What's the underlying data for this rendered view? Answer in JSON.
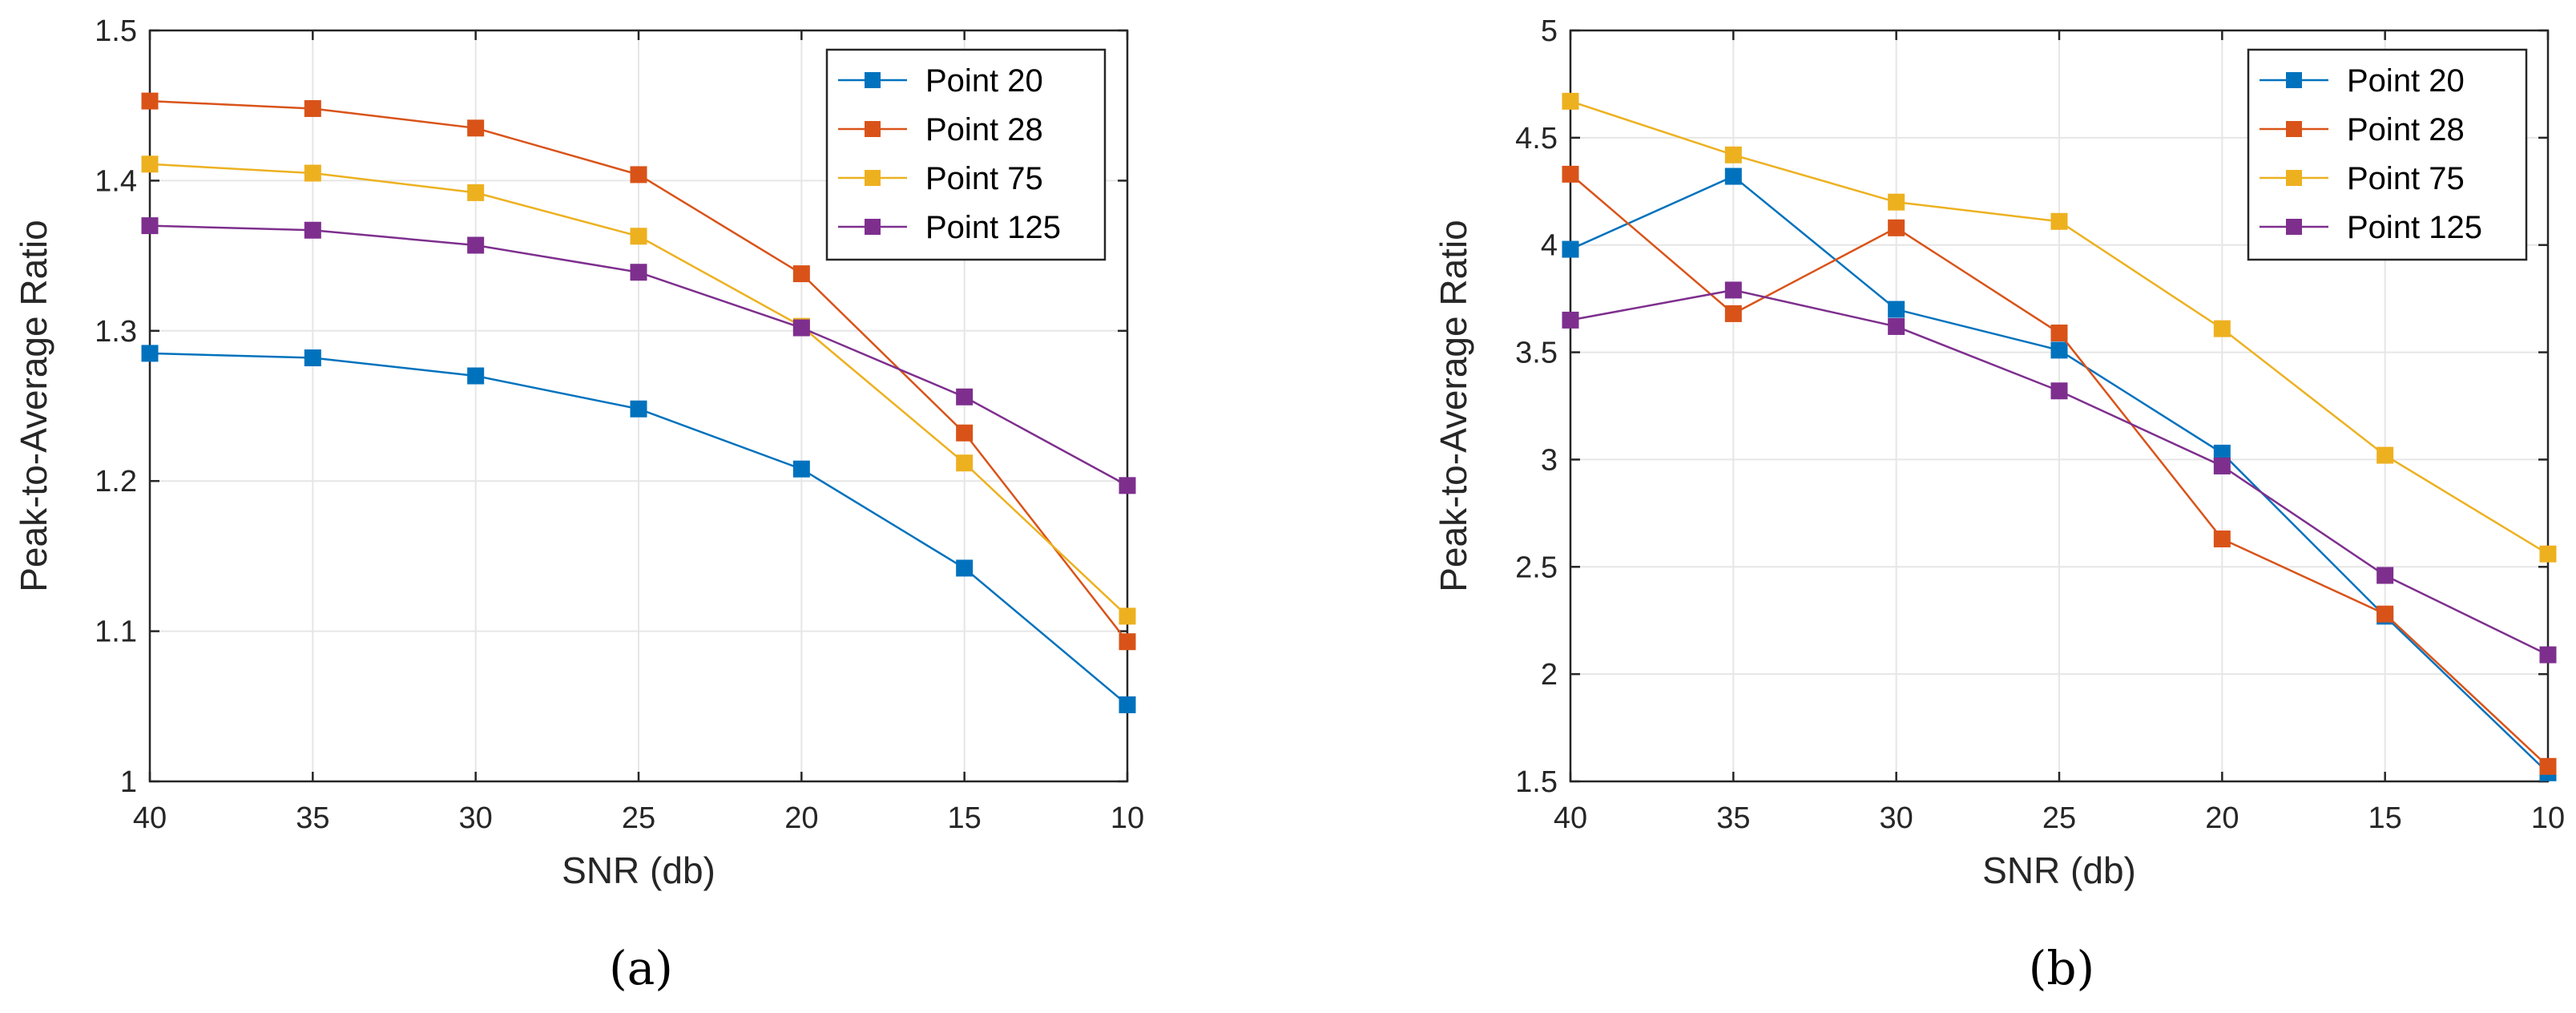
{
  "chart_data": [
    {
      "type": "line",
      "caption": "(a)",
      "xlabel": "SNR (db)",
      "ylabel": "Peak-to-Average Ratio",
      "x": [
        40,
        35,
        30,
        25,
        20,
        15,
        10
      ],
      "xlim": [
        40,
        10
      ],
      "xticks": [
        40,
        35,
        30,
        25,
        20,
        15,
        10
      ],
      "xtick_labels": [
        "40",
        "35",
        "30",
        "25",
        "20",
        "15",
        "10"
      ],
      "ylim": [
        1,
        1.5
      ],
      "yticks": [
        1,
        1.1,
        1.2,
        1.3,
        1.4,
        1.5
      ],
      "ytick_labels": [
        "1",
        "1.1",
        "1.2",
        "1.3",
        "1.4",
        "1.5"
      ],
      "grid": true,
      "legend": "top-right",
      "series": [
        {
          "name": "Point 20",
          "color": "#0072BD",
          "values": [
            1.285,
            1.282,
            1.27,
            1.248,
            1.208,
            1.142,
            1.051
          ]
        },
        {
          "name": "Point 28",
          "color": "#D95319",
          "values": [
            1.453,
            1.448,
            1.435,
            1.404,
            1.338,
            1.232,
            1.093
          ]
        },
        {
          "name": "Point 75",
          "color": "#EDB120",
          "values": [
            1.411,
            1.405,
            1.392,
            1.363,
            1.303,
            1.212,
            1.11
          ]
        },
        {
          "name": "Point 125",
          "color": "#7E2F8E",
          "values": [
            1.37,
            1.367,
            1.357,
            1.339,
            1.302,
            1.256,
            1.197
          ]
        }
      ]
    },
    {
      "type": "line",
      "caption": "(b)",
      "xlabel": "SNR (db)",
      "ylabel": "Peak-to-Average Ratio",
      "x": [
        40,
        35,
        30,
        25,
        20,
        15,
        10
      ],
      "xlim": [
        40,
        10
      ],
      "xticks": [
        40,
        35,
        30,
        25,
        20,
        15,
        10
      ],
      "xtick_labels": [
        "40",
        "35",
        "30",
        "25",
        "20",
        "15",
        "10"
      ],
      "ylim": [
        1.5,
        5
      ],
      "yticks": [
        1.5,
        2,
        2.5,
        3,
        3.5,
        4,
        4.5,
        5
      ],
      "ytick_labels": [
        "1.5",
        "2",
        "2.5",
        "3",
        "3.5",
        "4",
        "4.5",
        "5"
      ],
      "grid": true,
      "legend": "top-right",
      "series": [
        {
          "name": "Point 20",
          "color": "#0072BD",
          "values": [
            3.98,
            4.32,
            3.7,
            3.51,
            3.03,
            2.27,
            1.54
          ]
        },
        {
          "name": "Point 28",
          "color": "#D95319",
          "values": [
            4.33,
            3.68,
            4.08,
            3.59,
            2.63,
            2.28,
            1.57
          ]
        },
        {
          "name": "Point 75",
          "color": "#EDB120",
          "values": [
            4.67,
            4.42,
            4.2,
            4.11,
            3.61,
            3.02,
            2.56
          ]
        },
        {
          "name": "Point 125",
          "color": "#7E2F8E",
          "values": [
            3.65,
            3.79,
            3.62,
            3.32,
            2.97,
            2.46,
            2.09
          ]
        }
      ]
    }
  ]
}
